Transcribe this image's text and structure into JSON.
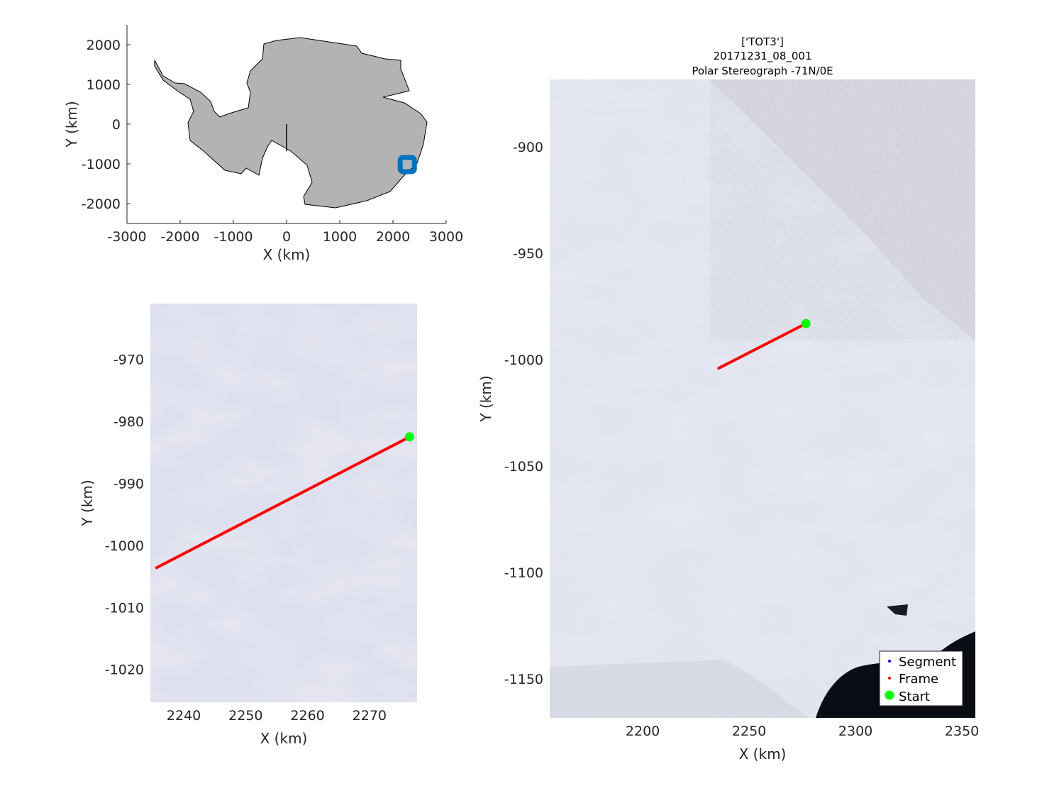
{
  "chart_data": [
    {
      "type": "map",
      "name": "overview",
      "xlabel": "X (km)",
      "ylabel": "Y (km)",
      "xlim": [
        -3000,
        3000
      ],
      "ylim": [
        -2500,
        2500
      ],
      "xticks": [
        -3000,
        -2000,
        -1000,
        0,
        1000,
        2000,
        3000
      ],
      "yticks": [
        2000,
        1000,
        0,
        -1000,
        -2000
      ],
      "land_color": "#b3b3b3",
      "marker": {
        "x": 2256,
        "y": -1000,
        "color": "#0072bd",
        "shape": "square"
      },
      "meridian_line": {
        "x": [
          0,
          0
        ],
        "y": [
          0,
          -680
        ],
        "color": "#000000"
      }
    },
    {
      "type": "map",
      "name": "zoom-detail",
      "xlabel": "X (km)",
      "ylabel": "Y (km)",
      "xlim": [
        2234.6,
        2277.7
      ],
      "ylim": [
        -1025.3,
        -961
      ],
      "xticks": [
        2240,
        2250,
        2260,
        2270
      ],
      "yticks": [
        -970,
        -980,
        -990,
        -1000,
        -1010,
        -1020
      ],
      "frame_line": {
        "x": [
          2235.6,
          2276.5
        ],
        "y": [
          -1003.6,
          -982.5
        ],
        "color": "#ff0000"
      },
      "start": {
        "x": 2276.5,
        "y": -982.5,
        "color": "#00ff00"
      }
    },
    {
      "type": "map",
      "name": "main",
      "title": [
        "['TOT3']",
        "20171231_08_001",
        "Polar Stereograph -71N/0E"
      ],
      "xlabel": "X (km)",
      "ylabel": "Y (km)",
      "xlim": [
        2156.3,
        2356.3
      ],
      "ylim": [
        -1168.3,
        -868.3
      ],
      "xticks": [
        2200,
        2250,
        2300,
        2350
      ],
      "yticks": [
        -900,
        -950,
        -1000,
        -1050,
        -1100,
        -1150
      ],
      "frame_line": {
        "x": [
          2235.7,
          2276.7
        ],
        "y": [
          -1004,
          -983
        ],
        "color": "#ff0000"
      },
      "start": {
        "x": 2276.7,
        "y": -983,
        "color": "#00ff00"
      },
      "legend": {
        "placement": "bottom-right",
        "entries": [
          {
            "label": "Segment",
            "color": "#0000ff"
          },
          {
            "label": "Frame",
            "color": "#ff0000"
          },
          {
            "label": "Start",
            "color": "#00ff00"
          }
        ]
      }
    }
  ]
}
